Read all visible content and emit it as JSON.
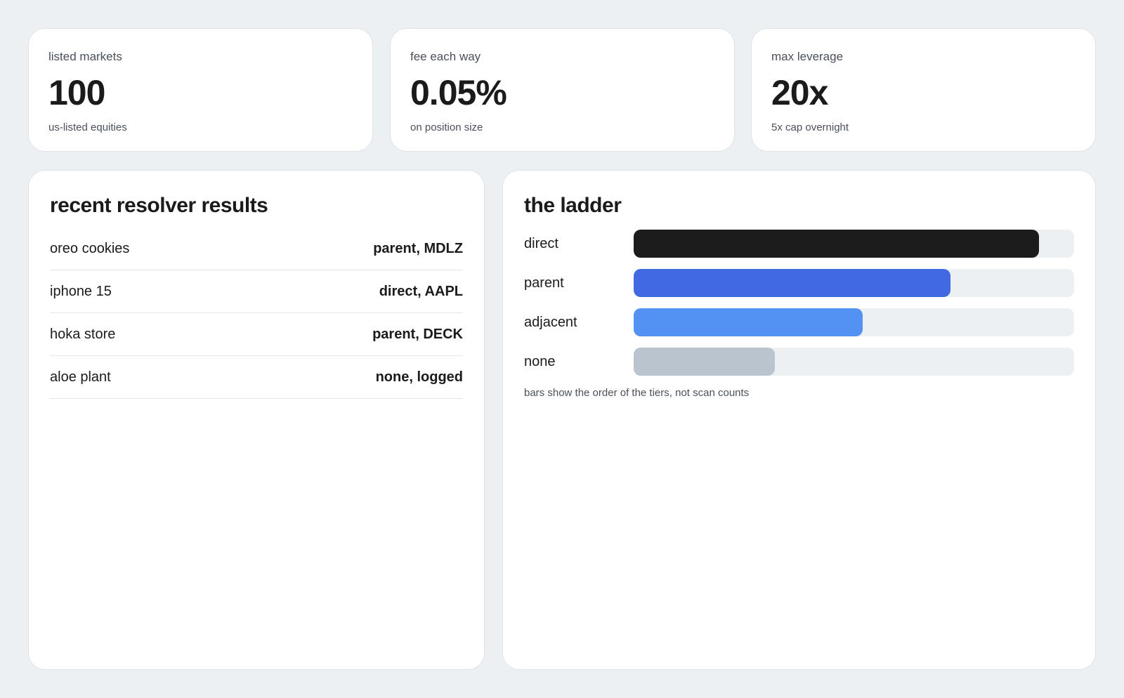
{
  "stats": [
    {
      "label": "listed markets",
      "value": "100",
      "sub": "us-listed equities"
    },
    {
      "label": "fee each way",
      "value": "0.05%",
      "sub": "on position size"
    },
    {
      "label": "max leverage",
      "value": "20x",
      "sub": "5x cap overnight"
    }
  ],
  "results": {
    "title": "recent resolver results",
    "rows": [
      {
        "query": "oreo cookies",
        "result": "parent, MDLZ"
      },
      {
        "query": "iphone 15",
        "result": "direct, AAPL"
      },
      {
        "query": "hoka store",
        "result": "parent, DECK"
      },
      {
        "query": "aloe plant",
        "result": "none, logged"
      }
    ]
  },
  "ladder": {
    "title": "the ladder",
    "tiers": [
      {
        "name": "direct",
        "level": 0.92,
        "color": "#1c1c1c"
      },
      {
        "name": "parent",
        "level": 0.72,
        "color": "#4169e1"
      },
      {
        "name": "adjacent",
        "level": 0.52,
        "color": "#5391f2"
      },
      {
        "name": "none",
        "level": 0.32,
        "color": "#bac4ce"
      }
    ],
    "note": "bars show the order of the tiers, not scan counts"
  }
}
